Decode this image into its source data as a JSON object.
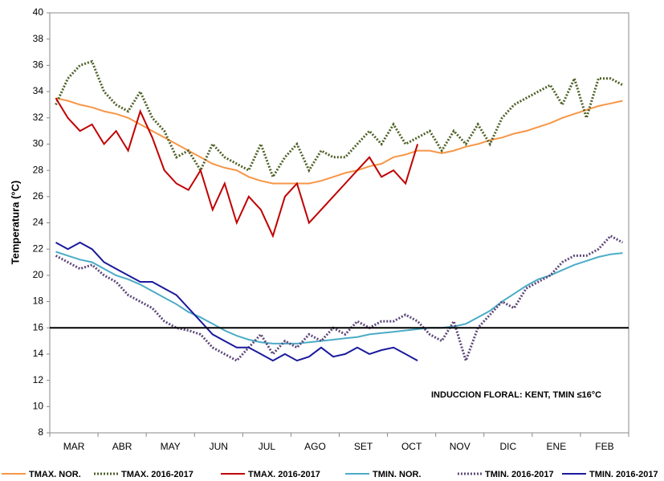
{
  "chart_data": {
    "type": "line",
    "y_label": "Temperatura (°C)",
    "annotation": "INDUCCION FLORAL: KENT, TMIN ≤16°C",
    "threshold": 16,
    "categories": [
      null,
      "MAR",
      null,
      null,
      null,
      "ABR",
      null,
      null,
      null,
      "MAY",
      null,
      null,
      null,
      "JUN",
      null,
      null,
      null,
      "JUL",
      null,
      null,
      null,
      "AGO",
      null,
      null,
      null,
      "SET",
      null,
      null,
      null,
      "OCT",
      null,
      null,
      null,
      "NOV",
      null,
      null,
      null,
      "DIC",
      null,
      null,
      null,
      "ENE",
      null,
      null,
      null,
      "FEB",
      null,
      null
    ],
    "ylim": [
      8,
      40
    ],
    "yticks": [
      8,
      10,
      12,
      14,
      16,
      18,
      20,
      22,
      24,
      26,
      28,
      30,
      32,
      34,
      36,
      38,
      40
    ],
    "series": [
      {
        "name": "TMAX. NOR.",
        "color": "#f79646",
        "dash": false,
        "values": [
          33.5,
          33.3,
          33,
          32.8,
          32.5,
          32.3,
          32,
          31.5,
          31,
          30.5,
          30,
          29.5,
          29,
          28.5,
          28.2,
          28,
          27.5,
          27.2,
          27,
          27,
          27,
          27,
          27.2,
          27.5,
          27.8,
          28,
          28.3,
          28.5,
          29,
          29.2,
          29.5,
          29.5,
          29.3,
          29.5,
          29.8,
          30,
          30.3,
          30.5,
          30.8,
          31,
          31.3,
          31.6,
          32,
          32.3,
          32.6,
          32.9,
          33.1,
          33.3
        ]
      },
      {
        "name": "TMAX. 2016-2017",
        "color": "#4f6228",
        "dash": true,
        "values": [
          33,
          35,
          36,
          36.3,
          34,
          33,
          32.5,
          34,
          32,
          31,
          29,
          29.5,
          28,
          30,
          29,
          28.5,
          28,
          30,
          27.5,
          29,
          30,
          28,
          29.5,
          29,
          29,
          30,
          31,
          30,
          31.5,
          30,
          30.5,
          31,
          29.5,
          31,
          30,
          31.5,
          30,
          32,
          33,
          33.5,
          34,
          34.5,
          33,
          35,
          32,
          35,
          35,
          34.5
        ]
      },
      {
        "name": "TMAX. 2016-2017",
        "color": "#c00000",
        "dash": false,
        "values": [
          33.5,
          32,
          31,
          31.5,
          30,
          31,
          29.5,
          32.5,
          30.5,
          28,
          27,
          26.5,
          28,
          25,
          27,
          24,
          26,
          25,
          23,
          26,
          27,
          24,
          25,
          26,
          27,
          28,
          29,
          27.5,
          28,
          27,
          30,
          null,
          null,
          null,
          null,
          null,
          null,
          null,
          null,
          null,
          null,
          null,
          null,
          null,
          null,
          null,
          null,
          null
        ]
      },
      {
        "name": "TMIN. NOR.",
        "color": "#4bacc6",
        "dash": false,
        "values": [
          21.8,
          21.5,
          21.2,
          21,
          20.5,
          20,
          19.7,
          19.3,
          18.8,
          18.3,
          17.8,
          17.2,
          16.8,
          16.3,
          15.8,
          15.4,
          15.1,
          14.9,
          14.8,
          14.8,
          14.8,
          14.9,
          15,
          15.1,
          15.2,
          15.3,
          15.5,
          15.6,
          15.7,
          15.8,
          15.9,
          16,
          16,
          16.1,
          16.3,
          16.8,
          17.3,
          18,
          18.6,
          19.2,
          19.7,
          20,
          20.4,
          20.8,
          21.1,
          21.4,
          21.6,
          21.7
        ]
      },
      {
        "name": "TMIN. 2016-2017",
        "color": "#5f497a",
        "dash": true,
        "values": [
          21.5,
          21,
          20.5,
          20.8,
          20,
          19.5,
          18.5,
          18,
          17.5,
          16.5,
          16,
          15.8,
          15.5,
          14.5,
          14,
          13.5,
          14.5,
          15.5,
          14,
          15,
          14.5,
          15.5,
          15,
          16,
          15.5,
          16.5,
          16,
          16.5,
          16.5,
          17,
          16.5,
          15.5,
          15,
          16.5,
          13.5,
          16,
          17,
          18,
          17.5,
          19,
          19.5,
          20,
          21,
          21.5,
          21.5,
          22,
          23,
          22.5
        ]
      },
      {
        "name": "TMIN. 2016-2017",
        "color": "#1a1a9c",
        "dash": false,
        "values": [
          22.5,
          22,
          22.5,
          22,
          21,
          20.5,
          20,
          19.5,
          19.5,
          19,
          18.5,
          17.5,
          16.5,
          15.5,
          15,
          14.5,
          14.5,
          14,
          13.5,
          14,
          13.5,
          13.8,
          14.5,
          13.8,
          14,
          14.5,
          14,
          14.3,
          14.5,
          14,
          13.5,
          null,
          null,
          null,
          null,
          null,
          null,
          null,
          null,
          null,
          null,
          null,
          null,
          null,
          null,
          null,
          null,
          null
        ]
      }
    ]
  }
}
